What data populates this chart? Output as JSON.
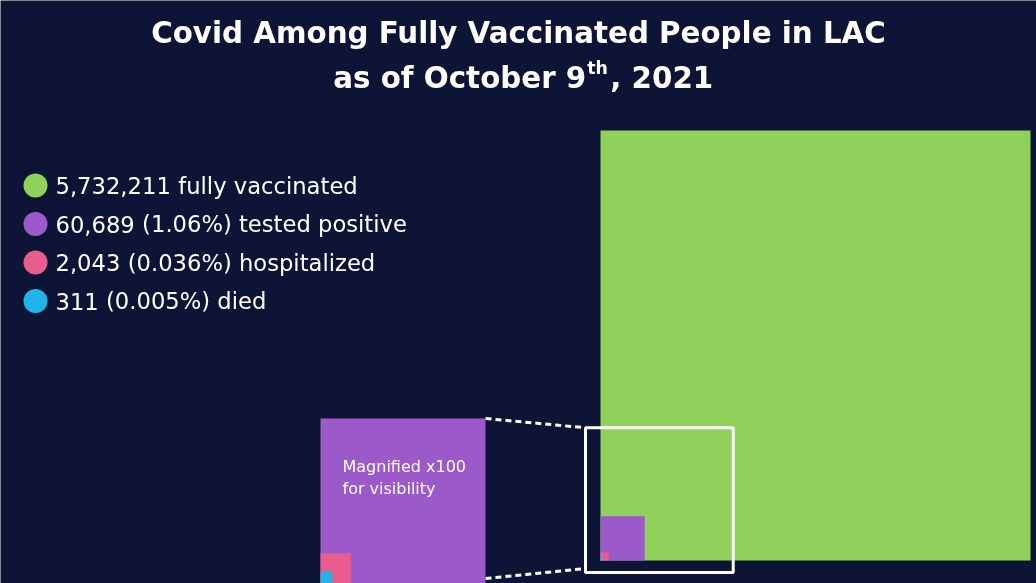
{
  "chart_data": {
    "type": "other",
    "title": "Covid Among Fully Vaccinated People in LAC\nas of October 9$^{th}$, 2021",
    "categories": [
      "fully vaccinated",
      "(1.06%) tested positive",
      "(0.036%) hospitalized",
      "(0.005%) died"
    ],
    "values": [
      5732211,
      60689,
      2043,
      311
    ],
    "value_labels": [
      "5,732,211",
      "60,689",
      "2,043",
      "311"
    ],
    "colors": [
      "#8fd15a",
      "#9b59c9",
      "#e85c8e",
      "#1fb5e8"
    ],
    "annotations": [
      "Magnified x100\nfor visibility"
    ]
  }
}
